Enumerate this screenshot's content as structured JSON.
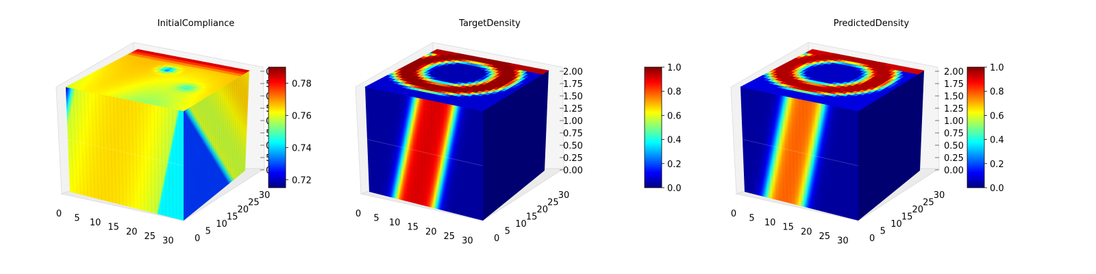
{
  "colormap": "jet",
  "chart_data": [
    {
      "type": "voxel-3d",
      "title": "InitialCompliance",
      "x_ticks": [
        0,
        5,
        10,
        15,
        20,
        25,
        30
      ],
      "y_ticks": [
        0,
        5,
        10,
        15,
        20,
        25,
        30
      ],
      "x_range": [
        0,
        32
      ],
      "y_range": [
        0,
        32
      ],
      "z_range": [
        0,
        2
      ],
      "z_ticks_visible": [
        "0",
        "5",
        "0",
        "5",
        "0",
        "5",
        "0",
        "5",
        "0"
      ],
      "colorbar": {
        "min": 0.715,
        "max": 0.79,
        "ticks": [
          0.72,
          0.74,
          0.76,
          0.78
        ]
      }
    },
    {
      "type": "voxel-3d",
      "title": "TargetDensity",
      "x_ticks": [
        0,
        5,
        10,
        15,
        20,
        25,
        30
      ],
      "y_ticks": [
        0,
        5,
        10,
        15,
        20,
        25,
        30
      ],
      "x_range": [
        0,
        32
      ],
      "y_range": [
        0,
        32
      ],
      "z_range": [
        0,
        2
      ],
      "z_ticks": [
        "0.00",
        "0.25",
        "0.50",
        "0.75",
        "1.00",
        "1.25",
        "1.50",
        "1.75",
        "2.00"
      ],
      "colorbar": {
        "min": 0,
        "max": 1,
        "ticks": [
          "0.0",
          "0.2",
          "0.4",
          "0.6",
          "0.8",
          "1.0"
        ]
      }
    },
    {
      "type": "voxel-3d",
      "title": "PredictedDensity",
      "x_ticks": [
        0,
        5,
        10,
        15,
        20,
        25,
        30
      ],
      "y_ticks": [
        0,
        5,
        10,
        15,
        20,
        25,
        30
      ],
      "x_range": [
        0,
        32
      ],
      "y_range": [
        0,
        32
      ],
      "z_range": [
        0,
        2
      ],
      "z_ticks": [
        "0.00",
        "0.25",
        "0.50",
        "0.75",
        "1.00",
        "1.25",
        "1.50",
        "1.75",
        "2.00"
      ],
      "colorbar": {
        "min": 0,
        "max": 1,
        "ticks": [
          "0.0",
          "0.2",
          "0.4",
          "0.6",
          "0.8",
          "1.0"
        ]
      }
    }
  ]
}
